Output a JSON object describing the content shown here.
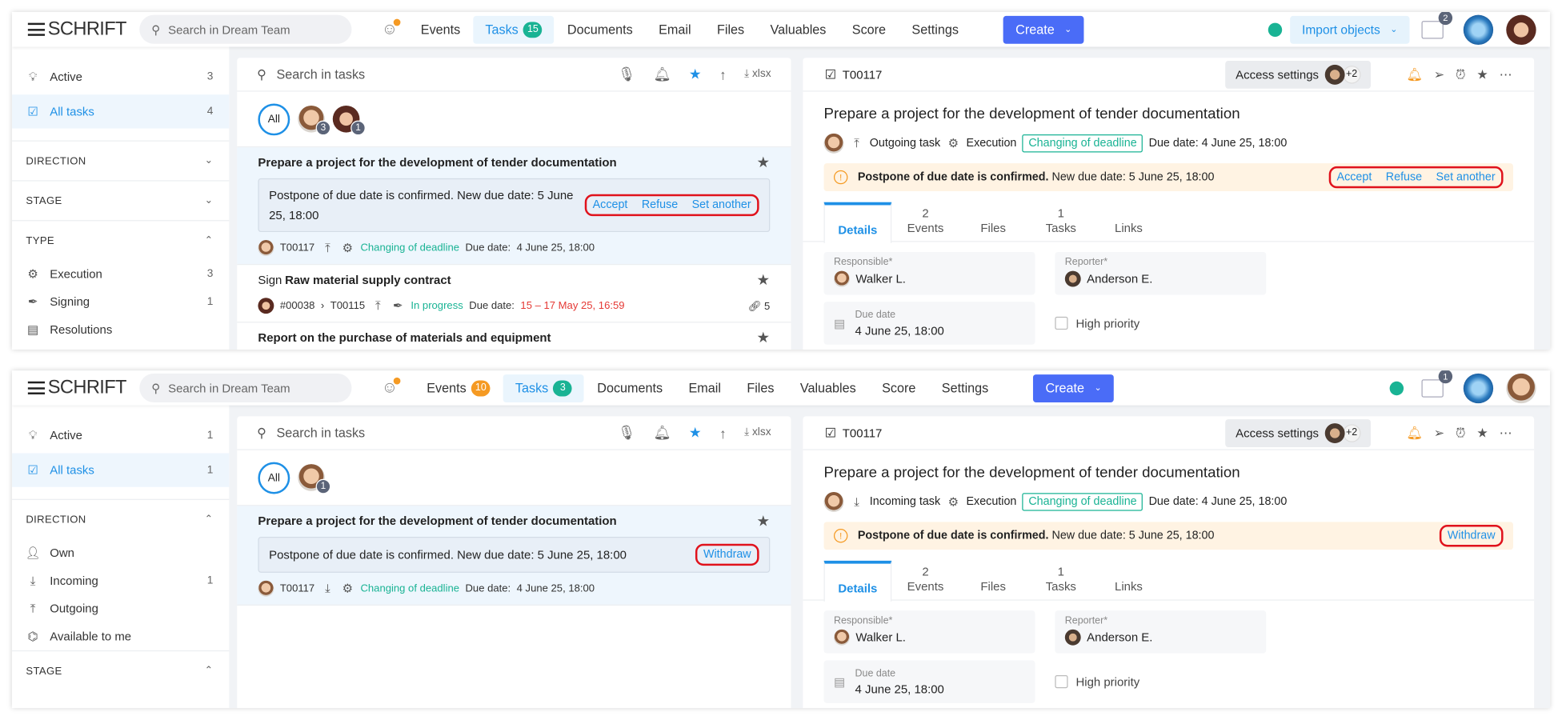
{
  "colors": {
    "accent": "#1e90e6",
    "create": "#4a6cf7",
    "green": "#19b394",
    "orange": "#f59a23",
    "highlight": "#e0121c"
  },
  "screens": [
    {
      "nav": {
        "logo": "SCHRIFT",
        "search_placeholder": "Search in Dream Team",
        "items": [
          {
            "label": "Events"
          },
          {
            "label": "Tasks",
            "badge": "15",
            "badge_color": "#19b394",
            "active": true
          },
          {
            "label": "Documents"
          },
          {
            "label": "Email"
          },
          {
            "label": "Files"
          },
          {
            "label": "Valuables"
          },
          {
            "label": "Score"
          },
          {
            "label": "Settings"
          }
        ],
        "create_label": "Create",
        "import_label": "Import objects",
        "briefcase_badge": "2"
      },
      "sidebar": [
        {
          "kind": "item",
          "label": "Active",
          "count": "3",
          "icon": "lightbulb-icon"
        },
        {
          "kind": "item",
          "label": "All tasks",
          "count": "4",
          "icon": "clipboard-check-icon",
          "active": true
        },
        {
          "kind": "section",
          "label": "DIRECTION",
          "expanded": false
        },
        {
          "kind": "section",
          "label": "STAGE",
          "expanded": false
        },
        {
          "kind": "section",
          "label": "TYPE",
          "expanded": true
        },
        {
          "kind": "item",
          "label": "Execution",
          "count": "3",
          "icon": "gear-check-icon"
        },
        {
          "kind": "item",
          "label": "Signing",
          "count": "1",
          "icon": "pen-icon"
        },
        {
          "kind": "item",
          "label": "Resolutions",
          "icon": "calendar-icon"
        }
      ],
      "list": {
        "search_placeholder": "Search in tasks",
        "export_label": "xlsx",
        "all_label": "All",
        "assignees": [
          {
            "count": "3",
            "type": "m"
          },
          {
            "count": "1",
            "type": "f"
          }
        ],
        "tasks": [
          {
            "selected": true,
            "title": "Prepare a project for the development of tender documentation",
            "notice": "Postpone of due date is confirmed. New due date: 5 June 25, 18:00",
            "actions": [
              "Accept",
              "Refuse",
              "Set another"
            ],
            "avatar": "m",
            "id": "T00117",
            "direction": "upload-icon",
            "status": "Changing of deadline",
            "due_label": "Due date:",
            "due": "4 June 25, 18:00"
          },
          {
            "title_prefix": "Sign",
            "title": "Raw material supply contract",
            "avatar": "f",
            "parent": "#00038",
            "id": "T00115",
            "direction": "upload-icon",
            "status": "In progress",
            "due_label": "Due date:",
            "due": "15 – 17 May 25, 16:59",
            "due_overdue": true,
            "links": "5"
          },
          {
            "title": "Report on the purchase of materials and equipment",
            "partial": true
          }
        ]
      },
      "detail": {
        "id": "T00117",
        "access_label": "Access settings",
        "access_more": "+2",
        "title": "Prepare a project for the development of tender documentation",
        "direction": "Outgoing task",
        "direction_icon": "upload-icon",
        "type": "Execution",
        "status": "Changing of deadline",
        "due": "Due date: 4 June 25, 18:00",
        "warn_bold": "Postpone of due date is confirmed.",
        "warn_text": "New due date: 5 June 25, 18:00",
        "actions": [
          "Accept",
          "Refuse",
          "Set another"
        ],
        "tabs": [
          {
            "label": "Details",
            "active": true
          },
          {
            "label": "Events",
            "count": "2"
          },
          {
            "label": "Files"
          },
          {
            "label": "Tasks",
            "count": "1"
          },
          {
            "label": "Links"
          }
        ],
        "responsible_label": "Responsible*",
        "responsible": "Walker L.",
        "reporter_label": "Reporter*",
        "reporter": "Anderson E.",
        "due_label": "Due date",
        "due_value": "4 June 25, 18:00",
        "priority_label": "High priority"
      }
    },
    {
      "nav": {
        "logo": "SCHRIFT",
        "search_placeholder": "Search in Dream Team",
        "items": [
          {
            "label": "Events",
            "badge": "10",
            "badge_color": "#f59a23"
          },
          {
            "label": "Tasks",
            "badge": "3",
            "badge_color": "#19b394",
            "active": true
          },
          {
            "label": "Documents"
          },
          {
            "label": "Email"
          },
          {
            "label": "Files"
          },
          {
            "label": "Valuables"
          },
          {
            "label": "Score"
          },
          {
            "label": "Settings"
          }
        ],
        "create_label": "Create",
        "briefcase_badge": "1"
      },
      "sidebar": [
        {
          "kind": "item",
          "label": "Active",
          "count": "1",
          "icon": "lightbulb-icon"
        },
        {
          "kind": "item",
          "label": "All tasks",
          "count": "1",
          "icon": "clipboard-check-icon",
          "active": true
        },
        {
          "kind": "section",
          "label": "DIRECTION",
          "expanded": true
        },
        {
          "kind": "item",
          "label": "Own",
          "icon": "person-icon"
        },
        {
          "kind": "item",
          "label": "Incoming",
          "count": "1",
          "icon": "download-icon"
        },
        {
          "kind": "item",
          "label": "Outgoing",
          "icon": "upload-icon"
        },
        {
          "kind": "item",
          "label": "Available to me",
          "icon": "binoculars-icon"
        },
        {
          "kind": "section",
          "label": "STAGE",
          "expanded": true
        }
      ],
      "list": {
        "search_placeholder": "Search in tasks",
        "export_label": "xlsx",
        "all_label": "All",
        "assignees": [
          {
            "count": "1",
            "type": "m"
          }
        ],
        "tasks": [
          {
            "selected": true,
            "title": "Prepare a project for the development of tender documentation",
            "notice": "Postpone of due date is confirmed. New due date: 5 June 25, 18:00",
            "actions": [
              "Withdraw"
            ],
            "avatar": "m",
            "id": "T00117",
            "direction": "download-icon",
            "status": "Changing of deadline",
            "due_label": "Due date:",
            "due": "4 June 25, 18:00"
          }
        ]
      },
      "detail": {
        "id": "T00117",
        "access_label": "Access settings",
        "access_more": "+2",
        "title": "Prepare a project for the development of tender documentation",
        "direction": "Incoming task",
        "direction_icon": "download-icon",
        "type": "Execution",
        "status": "Changing of deadline",
        "due": "Due date: 4 June 25, 18:00",
        "warn_bold": "Postpone of due date is confirmed.",
        "warn_text": "New due date: 5 June 25, 18:00",
        "actions": [
          "Withdraw"
        ],
        "tabs": [
          {
            "label": "Details",
            "active": true
          },
          {
            "label": "Events",
            "count": "2"
          },
          {
            "label": "Files"
          },
          {
            "label": "Tasks",
            "count": "1"
          },
          {
            "label": "Links"
          }
        ],
        "responsible_label": "Responsible*",
        "responsible": "Walker L.",
        "reporter_label": "Reporter*",
        "reporter": "Anderson E.",
        "due_label": "Due date",
        "due_value": "4 June 25, 18:00",
        "priority_label": "High priority"
      }
    }
  ]
}
